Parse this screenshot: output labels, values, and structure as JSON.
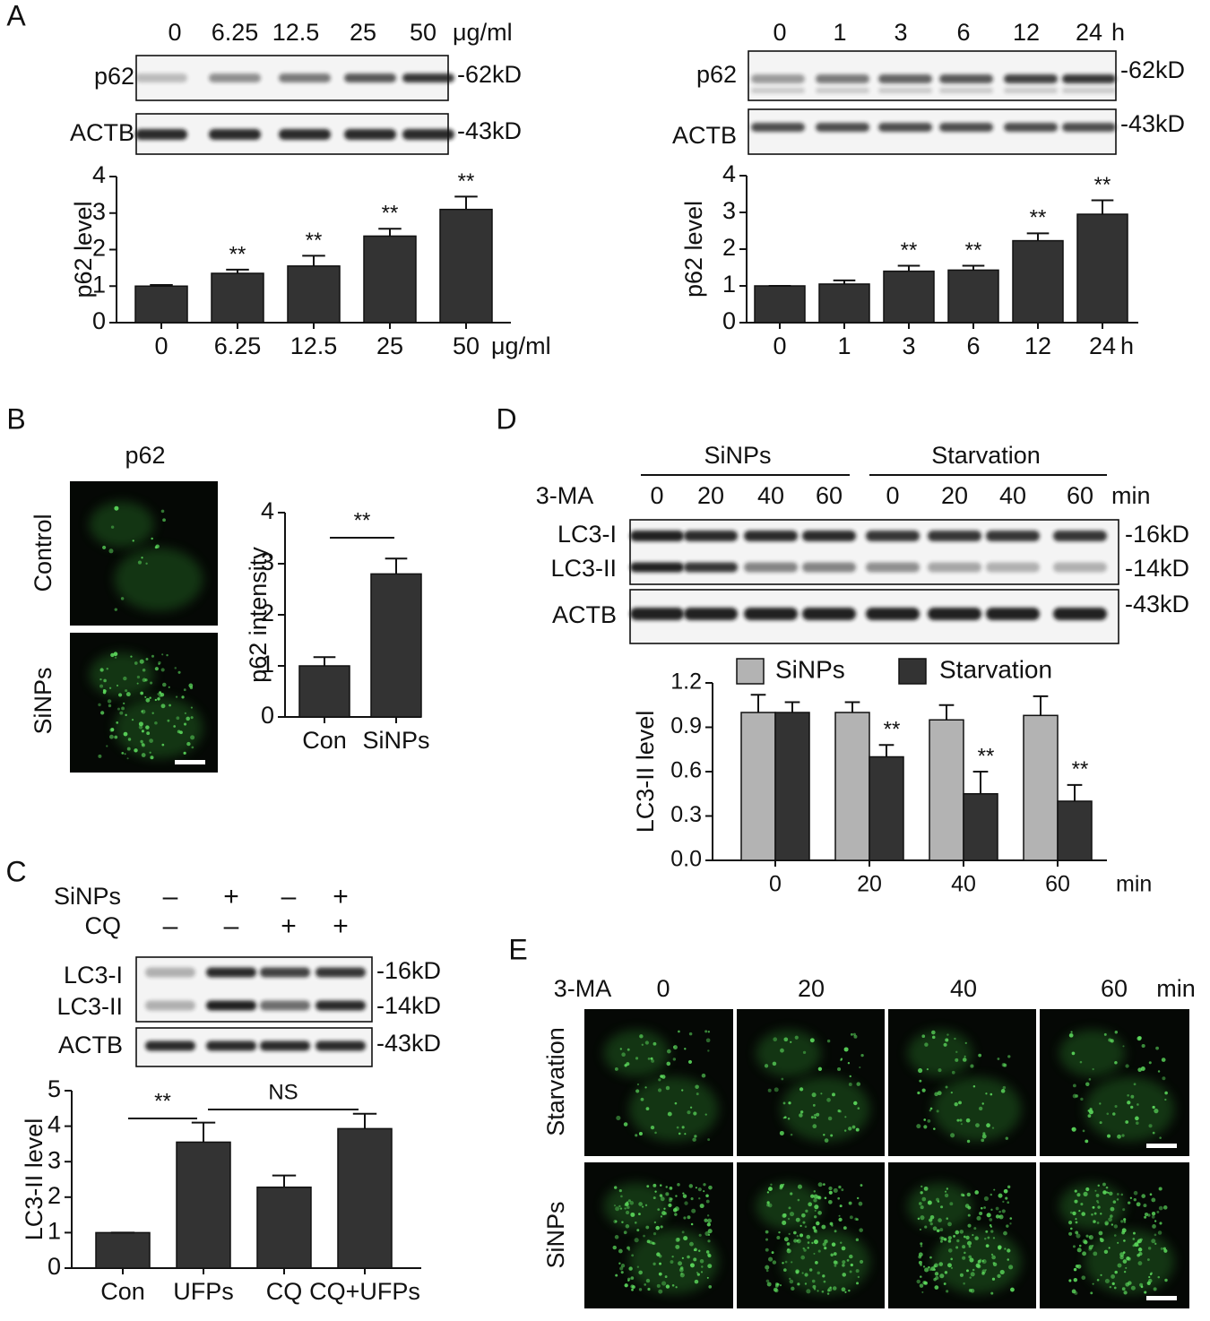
{
  "panel_labels": [
    "A",
    "B",
    "C",
    "D",
    "E"
  ],
  "blots": [
    {
      "lanes": [
        "0",
        "6.25",
        "12.5",
        "25",
        "50"
      ],
      "unit": "μg/ml",
      "rows": [
        {
          "name": "p62",
          "size": "-62kD"
        },
        {
          "name": "ACTB",
          "size": "-43kD"
        }
      ]
    },
    {
      "lanes": [
        "0",
        "1",
        "3",
        "6",
        "12",
        "24"
      ],
      "unit": "h",
      "rows": [
        {
          "name": "p62",
          "size": "-62kD"
        },
        {
          "name": "ACTB",
          "size": "-43kD"
        }
      ]
    },
    {
      "conditions": [
        {
          "name": "SiNPs",
          "signs": [
            "–",
            "+",
            "–",
            "+"
          ]
        },
        {
          "name": "CQ",
          "signs": [
            "–",
            "–",
            "+",
            "+"
          ]
        }
      ],
      "rows": [
        {
          "name": "LC3-I",
          "size": "-16kD"
        },
        {
          "name": "LC3-II",
          "size": "-14kD"
        },
        {
          "name": "ACTB",
          "size": "-43kD"
        }
      ]
    },
    {
      "groups": [
        "SiNPs",
        "Starvation"
      ],
      "treatment": "3-MA",
      "lanes": [
        "0",
        "20",
        "40",
        "60",
        "0",
        "20",
        "40",
        "60"
      ],
      "unit": "min",
      "rows": [
        {
          "name": "LC3-I",
          "size": "-16kD"
        },
        {
          "name": "LC3-II",
          "size": "-14kD"
        },
        {
          "name": "ACTB",
          "size": "-43kD"
        }
      ]
    }
  ],
  "micrographs": [
    {
      "title": "p62",
      "rows": [
        "Control",
        "SiNPs"
      ]
    },
    {
      "treatment": "3-MA",
      "columns": [
        "0",
        "20",
        "40",
        "60"
      ],
      "unit": "min",
      "rows": [
        "Starvation",
        "SiNPs"
      ]
    }
  ],
  "chart_data": [
    {
      "type": "bar",
      "ylabel": "p62 level",
      "xlabel": "μg/ml",
      "categories": [
        "0",
        "6.25",
        "12.5",
        "25",
        "50"
      ],
      "values": [
        1,
        1.35,
        1.55,
        2.37,
        3.1
      ],
      "errors": [
        0.03,
        0.1,
        0.28,
        0.2,
        0.35
      ],
      "value_annotations": [
        null,
        "**",
        "**",
        "**",
        "**"
      ],
      "color": "#333333",
      "ylim": [
        0,
        4
      ],
      "yticks": [
        0,
        1,
        2,
        3,
        4
      ]
    },
    {
      "type": "bar",
      "ylabel": "p62 level",
      "xlabel": "h",
      "categories": [
        "0",
        "1",
        "3",
        "6",
        "12",
        "24"
      ],
      "values": [
        1,
        1.05,
        1.4,
        1.43,
        2.23,
        2.95
      ],
      "errors": [
        0,
        0.1,
        0.15,
        0.12,
        0.2,
        0.38
      ],
      "value_annotations": [
        null,
        null,
        "**",
        "**",
        "**",
        "**"
      ],
      "color": "#333333",
      "ylim": [
        0,
        4
      ],
      "yticks": [
        0,
        1,
        2,
        3,
        4
      ]
    },
    {
      "type": "bar",
      "ylabel": "p62 intensity",
      "categories": [
        "Con",
        "SiNPs"
      ],
      "values": [
        1,
        2.8
      ],
      "errors": [
        0.17,
        0.3
      ],
      "annotations": [
        "**"
      ],
      "color": "#333333",
      "ylim": [
        0,
        4
      ],
      "yticks": [
        0,
        1,
        2,
        3,
        4
      ]
    },
    {
      "type": "bar",
      "ylabel": "LC3-II level",
      "categories": [
        "Con",
        "UFPs",
        "CQ",
        "CQ+UFPs"
      ],
      "values": [
        1,
        3.55,
        2.28,
        3.93
      ],
      "errors": [
        0,
        0.55,
        0.33,
        0.42
      ],
      "annotations": [
        "**",
        "NS"
      ],
      "color": "#333333",
      "ylim": [
        0,
        5
      ],
      "yticks": [
        0,
        1,
        2,
        3,
        4,
        5
      ]
    },
    {
      "type": "grouped_bar",
      "ylabel": "LC3-II level",
      "xlabel": "min",
      "categories": [
        "0",
        "20",
        "40",
        "60"
      ],
      "series": [
        {
          "name": "SiNPs",
          "color": "#b3b3b3",
          "values": [
            1.0,
            1.0,
            0.95,
            0.98
          ],
          "errors": [
            0.12,
            0.07,
            0.1,
            0.13
          ]
        },
        {
          "name": "Starvation",
          "color": "#333333",
          "values": [
            1.0,
            0.7,
            0.45,
            0.4
          ],
          "errors": [
            0.07,
            0.08,
            0.15,
            0.11
          ],
          "value_annotations": [
            null,
            "**",
            "**",
            "**"
          ]
        }
      ],
      "ylim": [
        0,
        1.2
      ],
      "yticks": [
        {
          "value": 0,
          "label": "0.0"
        },
        0.3,
        0.6,
        0.9,
        1.2
      ]
    }
  ]
}
